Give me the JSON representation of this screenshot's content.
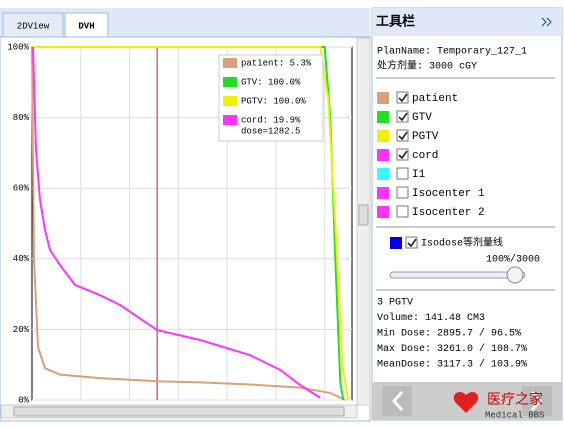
{
  "tabs": [
    "2DView",
    "DVH"
  ],
  "active_tab": 1,
  "dvh": {
    "type": "line",
    "ylim": [
      0,
      100
    ],
    "yticks": [
      {
        "value": 0,
        "label": "0%"
      },
      {
        "value": 20,
        "label": "20%"
      },
      {
        "value": 40,
        "label": "40%"
      },
      {
        "value": 60,
        "label": "60%"
      },
      {
        "value": 80,
        "label": "80%"
      },
      {
        "value": 100,
        "label": "100%"
      }
    ],
    "xlim": [
      0,
      3280
    ],
    "xgrid": [
      500,
      1000,
      1500,
      2000,
      2500,
      3000
    ],
    "grid": true,
    "cursor_dose": 1282.5,
    "cursor_color": "#b22222",
    "series": [
      {
        "color": "#d9a07a",
        "legend_lines": [
          "patient: 5.3%"
        ],
        "x": [
          0,
          21,
          62,
          133,
          287,
          698,
          1283,
          1724,
          2237,
          2750,
          3058,
          3211
        ],
        "values": [
          100,
          40,
          15,
          9,
          7.2,
          6.2,
          5.3,
          5.0,
          4.4,
          3.5,
          2,
          0
        ]
      },
      {
        "color": "#22dd22",
        "legend_lines": [
          "GTV: 100.0%"
        ],
        "x": [
          0,
          3000,
          3058,
          3109,
          3160,
          3191
        ],
        "values": [
          100,
          100,
          80,
          40,
          5,
          0
        ]
      },
      {
        "color": "#f0f000",
        "legend_lines": [
          "PGTV: 100.0%"
        ],
        "x": [
          0,
          2955,
          3037,
          3109,
          3181,
          3242
        ],
        "values": [
          100,
          100,
          85,
          50,
          10,
          0
        ]
      },
      {
        "color": "#ff33ff",
        "legend_lines": [
          "cord: 19.9%",
          "dose=1282.5"
        ],
        "x": [
          10,
          41,
          82,
          133,
          185,
          287,
          441,
          698,
          903,
          1283,
          1724,
          2237,
          2545,
          2750,
          2955
        ],
        "values": [
          100,
          70.8,
          56.7,
          48.2,
          42.5,
          38.2,
          32.6,
          29.7,
          26.9,
          19.8,
          17.0,
          12.7,
          8.5,
          4.2,
          0.6
        ]
      }
    ]
  },
  "toolbar": {
    "title": "工具栏",
    "plan_lines": [
      "PlanName: Temporary_127_1",
      "处方剂量: 3000 cGY"
    ],
    "structures": [
      {
        "name": "patient",
        "color": "#d9a07a",
        "checked": true
      },
      {
        "name": "GTV",
        "color": "#22dd22",
        "checked": true
      },
      {
        "name": "PGTV",
        "color": "#f0f000",
        "checked": true
      },
      {
        "name": "cord",
        "color": "#ff33ff",
        "checked": true
      },
      {
        "name": "I1",
        "color": "#33ffff",
        "checked": false
      },
      {
        "name": "Isocenter 1",
        "color": "#ff33ff",
        "checked": false
      },
      {
        "name": "Isocenter 2",
        "color": "#ff33ff",
        "checked": false
      }
    ],
    "isodose": {
      "label": "Isodose等剂量线",
      "color": "#0000ee",
      "checked": true,
      "level": "100%/3000"
    },
    "stats": [
      "3 PGTV",
      "Volume: 141.48 CM3",
      "Min Dose: 2895.7 / 96.5%",
      "Max Dose: 3261.0 / 108.7%",
      "MeanDose: 3117.3 / 103.9%"
    ],
    "watermark": [
      "医疗之家",
      "Medical BBS"
    ]
  }
}
